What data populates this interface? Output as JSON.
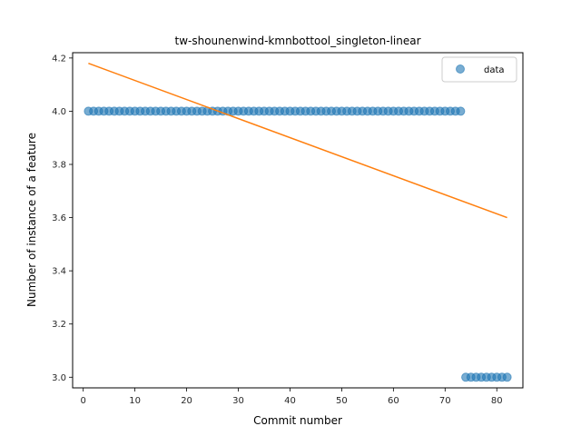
{
  "chart_data": {
    "type": "scatter",
    "title": "tw-shounenwind-kmnbottool_singleton-linear",
    "xlabel": "Commit number",
    "ylabel": "Number of instance of a feature",
    "xlim": [
      -2.05,
      85.05
    ],
    "ylim": [
      2.96,
      4.22
    ],
    "xticks": [
      0,
      10,
      20,
      30,
      40,
      50,
      60,
      70,
      80
    ],
    "yticks": [
      3.0,
      3.2,
      3.4,
      3.6,
      3.8,
      4.0,
      4.2
    ],
    "ytick_labels": [
      "3.0",
      "3.2",
      "3.4",
      "3.6",
      "3.8",
      "4.0",
      "4.2"
    ],
    "legend": {
      "position": "top-right",
      "entries": [
        "data"
      ]
    },
    "grid": false,
    "series": [
      {
        "name": "data",
        "kind": "scatter",
        "color": "#1f77b4",
        "segments": [
          {
            "x_start": 1,
            "x_end": 73,
            "y": 4.0
          },
          {
            "x_start": 74,
            "x_end": 82,
            "y": 3.0
          }
        ]
      },
      {
        "kind": "line",
        "color": "#ff7f0e",
        "x": [
          1,
          82
        ],
        "y": [
          4.18,
          3.6
        ]
      }
    ]
  }
}
